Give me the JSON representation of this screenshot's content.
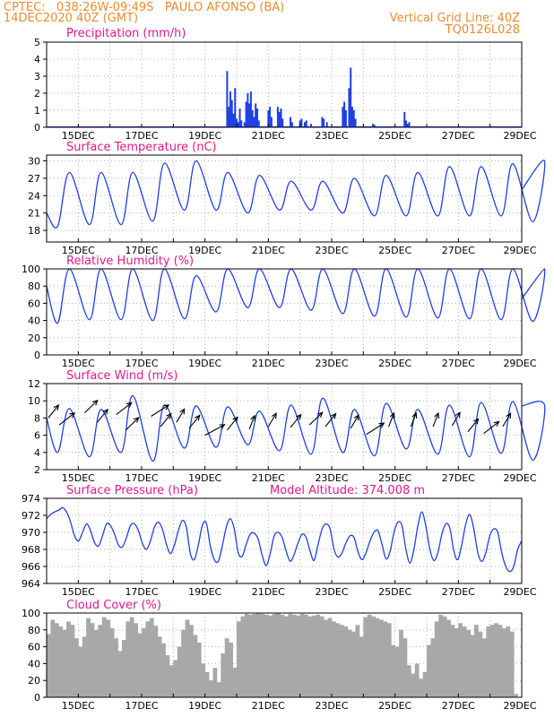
{
  "colors": {
    "header": "#ee8a2e",
    "panel_title": "#e0198b",
    "series": "#1f3fe6",
    "cloud": "#a8a8a8",
    "wind_arrow": "#000000",
    "grid": "#b0b0b0"
  },
  "header": {
    "line1": "CPTEC:   038:26W-09:49S   PAULO AFONSO (BA)",
    "line2": "14DEC2020 40Z (GMT)",
    "grid_note": "Vertical Grid Line: 40Z",
    "code": "TQ0126L028"
  },
  "x_ticks": [
    "15DEC",
    "17DEC",
    "19DEC",
    "21DEC",
    "23DEC",
    "25DEC",
    "27DEC",
    "29DEC"
  ],
  "chart_data": [
    {
      "type": "bar",
      "title": "Precipitation (mm/h)",
      "ylim": [
        0,
        5
      ],
      "yticks": [
        "0",
        "1",
        "2",
        "3",
        "4",
        "5"
      ],
      "x_days_start": "2020-12-14",
      "events": [
        {
          "day": 19.7,
          "value": 3.3
        },
        {
          "day": 19.75,
          "value": 1.2
        },
        {
          "day": 19.8,
          "value": 2.1
        },
        {
          "day": 19.85,
          "value": 1.6
        },
        {
          "day": 19.9,
          "value": 0.8
        },
        {
          "day": 19.95,
          "value": 2.3
        },
        {
          "day": 20.0,
          "value": 0.5
        },
        {
          "day": 20.05,
          "value": 0.3
        },
        {
          "day": 20.1,
          "value": 1.1
        },
        {
          "day": 20.15,
          "value": 0.4
        },
        {
          "day": 20.25,
          "value": 0.3
        },
        {
          "day": 20.3,
          "value": 1.5
        },
        {
          "day": 20.35,
          "value": 2.0
        },
        {
          "day": 20.4,
          "value": 1.4
        },
        {
          "day": 20.45,
          "value": 2.1
        },
        {
          "day": 20.5,
          "value": 1.0
        },
        {
          "day": 20.55,
          "value": 0.6
        },
        {
          "day": 20.6,
          "value": 1.4
        },
        {
          "day": 20.65,
          "value": 1.1
        },
        {
          "day": 20.7,
          "value": 0.4
        },
        {
          "day": 21.0,
          "value": 1.0
        },
        {
          "day": 21.05,
          "value": 1.2
        },
        {
          "day": 21.1,
          "value": 0.6
        },
        {
          "day": 21.3,
          "value": 1.2
        },
        {
          "day": 21.35,
          "value": 0.9
        },
        {
          "day": 21.4,
          "value": 1.1
        },
        {
          "day": 21.45,
          "value": 0.5
        },
        {
          "day": 21.7,
          "value": 0.6
        },
        {
          "day": 21.75,
          "value": 0.3
        },
        {
          "day": 22.0,
          "value": 0.4
        },
        {
          "day": 22.05,
          "value": 0.5
        },
        {
          "day": 22.15,
          "value": 0.3
        },
        {
          "day": 22.2,
          "value": 0.4
        },
        {
          "day": 22.35,
          "value": 0.2
        },
        {
          "day": 22.7,
          "value": 0.6
        },
        {
          "day": 22.75,
          "value": 0.5
        },
        {
          "day": 22.85,
          "value": 0.3
        },
        {
          "day": 23.35,
          "value": 1.2
        },
        {
          "day": 23.4,
          "value": 1.5
        },
        {
          "day": 23.45,
          "value": 1.0
        },
        {
          "day": 23.55,
          "value": 2.3
        },
        {
          "day": 23.6,
          "value": 3.5
        },
        {
          "day": 23.65,
          "value": 1.2
        },
        {
          "day": 23.7,
          "value": 1.0
        },
        {
          "day": 23.75,
          "value": 0.5
        },
        {
          "day": 24.3,
          "value": 0.2
        },
        {
          "day": 24.35,
          "value": 0.15
        },
        {
          "day": 25.3,
          "value": 0.9
        },
        {
          "day": 25.35,
          "value": 0.4
        },
        {
          "day": 25.4,
          "value": 0.2
        },
        {
          "day": 25.45,
          "value": 0.3
        }
      ]
    },
    {
      "type": "line",
      "title": "Surface Temperature (nC)",
      "ylim": [
        16,
        31
      ],
      "yticks": [
        "18",
        "21",
        "24",
        "27",
        "30"
      ],
      "series": [
        {
          "daily": [
            {
              "max": 21,
              "min": 17
            },
            {
              "max": 28,
              "min": 18.7
            },
            {
              "max": 28,
              "min": 19
            },
            {
              "max": 28,
              "min": 19
            },
            {
              "max": 29.6,
              "min": 19.6
            },
            {
              "max": 30,
              "min": 21.5
            },
            {
              "max": 28,
              "min": 21.5
            },
            {
              "max": 27.5,
              "min": 21
            },
            {
              "max": 26.5,
              "min": 21.5
            },
            {
              "max": 26.5,
              "min": 21.5
            },
            {
              "max": 27,
              "min": 21
            },
            {
              "max": 27.5,
              "min": 20.5
            },
            {
              "max": 28,
              "min": 20.5
            },
            {
              "max": 29,
              "min": 20.5
            },
            {
              "max": 29,
              "min": 20.5
            },
            {
              "max": 29.5,
              "min": 20.5
            },
            {
              "max": 30,
              "min": 19.5
            },
            {
              "max": 25,
              "min": 25
            }
          ]
        }
      ]
    },
    {
      "type": "line",
      "title": "Relative Humidity (%)",
      "ylim": [
        0,
        100
      ],
      "yticks": [
        "0",
        "20",
        "40",
        "60",
        "80",
        "100"
      ],
      "series": [
        {
          "daily": [
            {
              "max": 80,
              "min": 80
            },
            {
              "max": 100,
              "min": 37
            },
            {
              "max": 100,
              "min": 41
            },
            {
              "max": 100,
              "min": 41
            },
            {
              "max": 100,
              "min": 40
            },
            {
              "max": 92,
              "min": 42
            },
            {
              "max": 100,
              "min": 50
            },
            {
              "max": 100,
              "min": 55
            },
            {
              "max": 100,
              "min": 55
            },
            {
              "max": 100,
              "min": 52
            },
            {
              "max": 100,
              "min": 48
            },
            {
              "max": 100,
              "min": 45
            },
            {
              "max": 100,
              "min": 44
            },
            {
              "max": 100,
              "min": 43
            },
            {
              "max": 100,
              "min": 42
            },
            {
              "max": 100,
              "min": 41
            },
            {
              "max": 100,
              "min": 39
            },
            {
              "max": 65,
              "min": 65
            }
          ]
        }
      ]
    },
    {
      "type": "line",
      "title": "Surface Wind (m/s)",
      "ylim": [
        2,
        12
      ],
      "yticks": [
        "2",
        "4",
        "6",
        "8",
        "10",
        "12"
      ],
      "series": [
        {
          "daily": [
            {
              "max": 8,
              "min": 8
            },
            {
              "max": 9.1,
              "min": 4
            },
            {
              "max": 9,
              "min": 3.5
            },
            {
              "max": 10.6,
              "min": 4
            },
            {
              "max": 9.5,
              "min": 3
            },
            {
              "max": 9.4,
              "min": 4.5
            },
            {
              "max": 9.3,
              "min": 4.6
            },
            {
              "max": 8.8,
              "min": 4.9
            },
            {
              "max": 9.5,
              "min": 4.2
            },
            {
              "max": 10.3,
              "min": 3.8
            },
            {
              "max": 9,
              "min": 4
            },
            {
              "max": 9.7,
              "min": 3.6
            },
            {
              "max": 9,
              "min": 4.4
            },
            {
              "max": 9.5,
              "min": 3.8
            },
            {
              "max": 9.8,
              "min": 3.5
            },
            {
              "max": 9.9,
              "min": 3.9
            },
            {
              "max": 9.5,
              "min": 3.1
            },
            {
              "max": 9.4,
              "min": 9.4
            }
          ]
        }
      ],
      "arrows": [
        {
          "day": 14.05,
          "speed": 8.0,
          "dir": 200
        },
        {
          "day": 14.4,
          "speed": 7.2,
          "dir": 210
        },
        {
          "day": 15.2,
          "speed": 8.6,
          "dir": 205
        },
        {
          "day": 15.6,
          "speed": 7.5,
          "dir": 200
        },
        {
          "day": 16.2,
          "speed": 8.4,
          "dir": 210
        },
        {
          "day": 16.5,
          "speed": 6.6,
          "dir": 205
        },
        {
          "day": 17.3,
          "speed": 8.2,
          "dir": 215
        },
        {
          "day": 17.6,
          "speed": 7.0,
          "dir": 200
        },
        {
          "day": 18.1,
          "speed": 7.5,
          "dir": 195
        },
        {
          "day": 18.5,
          "speed": 6.8,
          "dir": 200
        },
        {
          "day": 19.0,
          "speed": 6.0,
          "dir": 220
        },
        {
          "day": 19.7,
          "speed": 6.6,
          "dir": 200
        },
        {
          "day": 20.4,
          "speed": 6.7,
          "dir": 190
        },
        {
          "day": 21.0,
          "speed": 7.0,
          "dir": 195
        },
        {
          "day": 21.7,
          "speed": 6.9,
          "dir": 200
        },
        {
          "day": 22.3,
          "speed": 7.2,
          "dir": 205
        },
        {
          "day": 22.8,
          "speed": 7.0,
          "dir": 200
        },
        {
          "day": 23.6,
          "speed": 6.8,
          "dir": 195
        },
        {
          "day": 24.1,
          "speed": 6.1,
          "dir": 215
        },
        {
          "day": 24.8,
          "speed": 7.0,
          "dir": 190
        },
        {
          "day": 25.5,
          "speed": 7.0,
          "dir": 190
        },
        {
          "day": 26.2,
          "speed": 7.0,
          "dir": 190
        },
        {
          "day": 26.8,
          "speed": 7.1,
          "dir": 195
        },
        {
          "day": 27.3,
          "speed": 6.4,
          "dir": 200
        },
        {
          "day": 27.8,
          "speed": 6.2,
          "dir": 210
        },
        {
          "day": 28.4,
          "speed": 7.0,
          "dir": 195
        }
      ]
    },
    {
      "type": "line",
      "title": "Surface Pressure (hPa)",
      "annotation": "Model Altitude: 374.008 m",
      "ylim": [
        964,
        974
      ],
      "yticks": [
        "964",
        "966",
        "968",
        "970",
        "972",
        "974"
      ],
      "series": [
        {
          "values": [
            971.6,
            972.1,
            972.4,
            972.6,
            972.9,
            972.4,
            971.2,
            969.6,
            969.0,
            970.0,
            971.0,
            970.2,
            968.8,
            968.4,
            969.6,
            971.0,
            970.8,
            969.8,
            968.5,
            968.3,
            969.4,
            970.8,
            971.0,
            970.2,
            968.7,
            968.0,
            969.0,
            970.6,
            971.2,
            970.4,
            968.6,
            967.5,
            968.5,
            970.2,
            971.4,
            970.6,
            967.5,
            966.8,
            968.5,
            970.8,
            971.1,
            968.4,
            966.8,
            966.6,
            968.4,
            970.6,
            971.6,
            970.4,
            967.6,
            967.2,
            968.6,
            969.8,
            969.9,
            969.2,
            967.3,
            966.1,
            967.5,
            969.6,
            970.0,
            969.4,
            967.8,
            966.6,
            967.4,
            968.8,
            969.8,
            969.4,
            967.8,
            966.7,
            968.6,
            970.4,
            971.0,
            970.4,
            968.0,
            967.1,
            967.6,
            968.8,
            969.6,
            969.4,
            967.7,
            966.8,
            967.6,
            969.0,
            970.0,
            970.2,
            968.6,
            966.9,
            967.7,
            970.0,
            971.2,
            970.8,
            968.0,
            966.4,
            968.0,
            970.8,
            972.4,
            970.7,
            968.0,
            966.7,
            967.6,
            969.8,
            971.0,
            970.5,
            967.8,
            966.8,
            968.6,
            971.0,
            972.1,
            970.4,
            967.6,
            966.6,
            967.6,
            969.6,
            970.4,
            970.0,
            967.6,
            966.0,
            965.4,
            966.0,
            968.0,
            969.0
          ]
        }
      ]
    },
    {
      "type": "area",
      "title": "Cloud Cover (%)",
      "ylim": [
        0,
        100
      ],
      "yticks": [
        "0",
        "20",
        "40",
        "60",
        "80",
        "100"
      ],
      "series": [
        {
          "values": [
            75,
            92,
            88,
            84,
            80,
            90,
            86,
            70,
            60,
            72,
            94,
            88,
            80,
            86,
            95,
            92,
            82,
            70,
            55,
            68,
            90,
            95,
            88,
            76,
            82,
            90,
            94,
            85,
            72,
            64,
            50,
            38,
            44,
            60,
            80,
            92,
            86,
            74,
            65,
            40,
            30,
            20,
            35,
            18,
            52,
            70,
            65,
            35,
            90,
            96,
            99,
            98,
            99,
            100,
            99,
            98,
            97,
            99,
            100,
            98,
            96,
            99,
            98,
            97,
            99,
            98,
            96,
            97,
            98,
            96,
            92,
            94,
            90,
            88,
            86,
            84,
            80,
            78,
            86,
            72,
            95,
            98,
            96,
            94,
            92,
            90,
            88,
            62,
            60,
            80,
            70,
            38,
            28,
            40,
            22,
            30,
            62,
            70,
            90,
            98,
            96,
            92,
            86,
            82,
            88,
            84,
            80,
            74,
            86,
            78,
            70,
            84,
            86,
            88,
            86,
            82,
            84,
            78,
            4,
            0
          ]
        }
      ]
    }
  ]
}
